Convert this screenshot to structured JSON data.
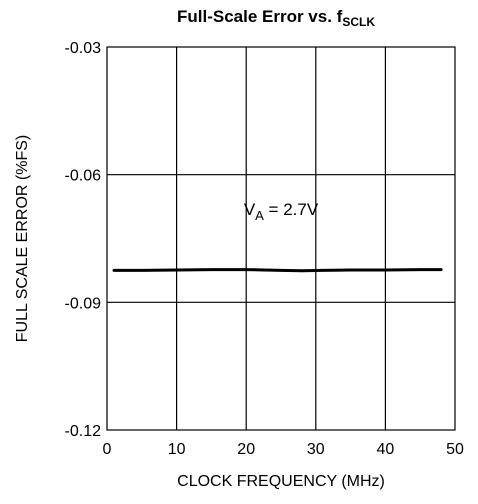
{
  "chart_data": {
    "type": "line",
    "title": "Full-Scale Error vs. f",
    "title_subscript": "SCLK",
    "xlabel": "CLOCK FREQUENCY (MHz)",
    "ylabel": "FULL SCALE ERROR (%FS)",
    "xlim": [
      0,
      50
    ],
    "ylim": [
      -0.12,
      -0.03
    ],
    "x_ticks": [
      0,
      10,
      20,
      30,
      40,
      50
    ],
    "x_tick_labels": [
      "0",
      "10",
      "20",
      "30",
      "40",
      "50"
    ],
    "y_ticks": [
      -0.03,
      -0.06,
      -0.09,
      -0.12
    ],
    "y_tick_labels": [
      "-0.03",
      "-0.06",
      "-0.09",
      "-0.12"
    ],
    "grid": true,
    "legend": "none",
    "line_color": "#000000",
    "annotation": {
      "prefix": "V",
      "subscript": "A",
      "suffix": " = 2.7V",
      "x": 25,
      "y": -0.07
    },
    "series": [
      {
        "x": [
          1,
          5,
          10,
          15,
          17,
          20,
          25,
          28,
          31,
          35,
          40,
          45,
          48
        ],
        "values": [
          -0.0825,
          -0.0825,
          -0.0824,
          -0.0823,
          -0.0823,
          -0.0823,
          -0.0825,
          -0.0826,
          -0.0825,
          -0.0824,
          -0.0824,
          -0.0823,
          -0.0823
        ]
      }
    ]
  }
}
